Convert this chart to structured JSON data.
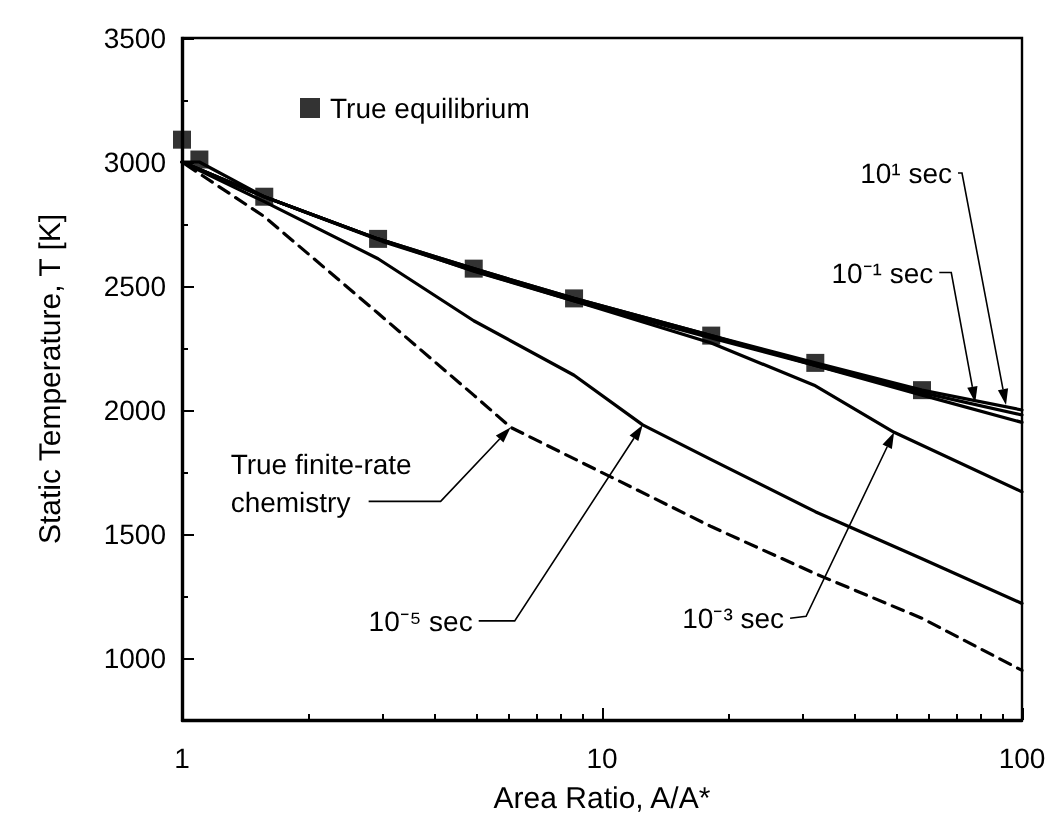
{
  "chart_data": {
    "type": "line",
    "xlabel": "Area Ratio, A/A*",
    "ylabel": "Static Temperature, T [K]",
    "log": "x",
    "xlim": [
      1,
      100
    ],
    "xticks": [
      1,
      10,
      100
    ],
    "ylim": [
      750,
      3500
    ],
    "yticks": [
      1000,
      1500,
      2000,
      2500,
      3000,
      3500
    ],
    "grid": false,
    "legend": "top left",
    "series": [
      {
        "name": "True equilibrium",
        "type": "scatter",
        "marker": "square",
        "color": "#000000",
        "x": [
          1,
          1.1,
          1.57,
          2.93,
          4.95,
          8.58,
          18.2,
          32.2,
          57.8
        ],
        "values": [
          3090,
          3010,
          2860,
          2690,
          2570,
          2450,
          2300,
          2190,
          2080
        ]
      },
      {
        "marker": "none",
        "color": "#000000",
        "x": [
          1,
          1.1,
          1.57,
          2.93,
          4.95,
          8.58,
          18.2,
          32.2,
          57.8,
          100
        ],
        "values": [
          3000,
          3000,
          2860,
          2690,
          2570,
          2450,
          2300,
          2190,
          2080,
          2000
        ]
      },
      {
        "marker": "none",
        "color": "#000000",
        "x": [
          1,
          1.57,
          2.93,
          4.95,
          8.58,
          18.2,
          32.2,
          57.8,
          100
        ],
        "values": [
          3000,
          2860,
          2690,
          2570,
          2450,
          2300,
          2180,
          2070,
          1980
        ]
      },
      {
        "marker": "none",
        "color": "#000000",
        "x": [
          1,
          1.57,
          2.93,
          4.95,
          8.58,
          18.2,
          32.2,
          57.8,
          100
        ],
        "values": [
          3000,
          2860,
          2690,
          2560,
          2440,
          2290,
          2180,
          2060,
          1950
        ]
      },
      {
        "marker": "none",
        "color": "#000000",
        "x": [
          1,
          1.57,
          3,
          5,
          8.6,
          18.2,
          32,
          49.6,
          100
        ],
        "values": [
          3000,
          2860,
          2680,
          2560,
          2440,
          2270,
          2100,
          1910,
          1670
        ]
      },
      {
        "marker": "none",
        "color": "#000000",
        "x": [
          1,
          1.57,
          2.93,
          4.95,
          8.58,
          12.5,
          18.2,
          32.2,
          57.8,
          100
        ],
        "values": [
          3000,
          2840,
          2610,
          2360,
          2140,
          1940,
          1800,
          1590,
          1400,
          1220
        ]
      },
      {
        "marker": "none",
        "line_style": "dashed",
        "color": "#000000",
        "x": [
          1.02,
          1.57,
          2.93,
          4.95,
          6.06,
          18.2,
          32.2,
          57.8,
          100
        ],
        "values": [
          2990,
          2780,
          2390,
          2060,
          1930,
          1530,
          1340,
          1160,
          950
        ]
      }
    ],
    "annotations": [
      {
        "text": "10¹ sec",
        "x": 91.6,
        "y": 2020
      },
      {
        "text": "10⁻¹ sec",
        "x": 77.4,
        "y": 2030
      },
      {
        "text": "10⁻³ sec",
        "x": 49.6,
        "y": 1910
      },
      {
        "text": "10⁻⁵ sec",
        "x": 12.5,
        "y": 1940
      },
      {
        "text": "True finite-rate chemistry",
        "x": 6.06,
        "y": 1930
      }
    ]
  }
}
